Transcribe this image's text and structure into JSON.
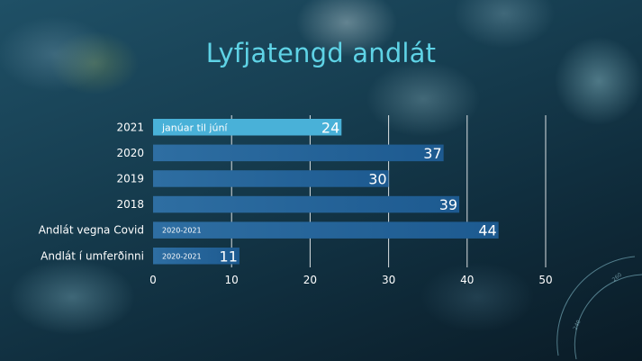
{
  "chart_data": {
    "type": "bar",
    "orientation": "horizontal",
    "title": "Lyfjatengd andlát",
    "categories": [
      "2021",
      "2020",
      "2019",
      "2018",
      "Andlát vegna Covid",
      "Andlát í umferðinni"
    ],
    "values": [
      24,
      37,
      30,
      39,
      44,
      11
    ],
    "notes": [
      "janúar til júní",
      "",
      "",
      "",
      "2020-2021",
      "2020-2021"
    ],
    "xlim": [
      0,
      50
    ],
    "xticks": [
      0,
      10,
      20,
      30,
      40,
      50
    ],
    "grid": "vertical",
    "colors": {
      "highlight": "#49b1d8",
      "bar_start": "#2e6ea2",
      "bar_end": "#1d5a90",
      "title": "#5fd3e6"
    }
  },
  "decor": {
    "dial_numbers": [
      "260",
      "240"
    ]
  }
}
